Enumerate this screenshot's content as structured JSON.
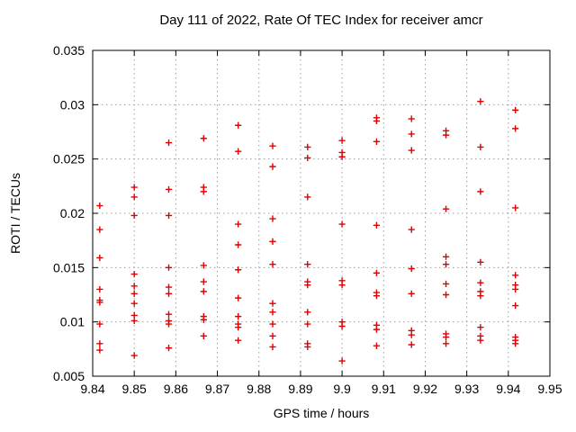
{
  "title": "Day 111 of 2022, Rate Of TEC Index for receiver amcr",
  "colors": {
    "marker": "#e00000",
    "grid": "#9e9e9e",
    "frame": "#000000",
    "background": "#ffffff"
  },
  "chart_data": {
    "type": "scatter",
    "title": "Day 111 of 2022, Rate Of TEC Index for receiver amcr",
    "xlabel": "GPS time / hours",
    "ylabel": "ROTI / TECUs",
    "xlim": [
      9.84,
      9.95
    ],
    "ylim": [
      0.005,
      0.035
    ],
    "xticks": [
      9.84,
      9.85,
      9.86,
      9.87,
      9.88,
      9.89,
      9.9,
      9.91,
      9.92,
      9.93,
      9.94,
      9.95
    ],
    "xtick_labels": [
      "9.84",
      "9.85",
      "9.86",
      "9.87",
      "9.88",
      "9.89",
      "9.9",
      "9.91",
      "9.92",
      "9.93",
      "9.94",
      "9.95"
    ],
    "yticks": [
      0.005,
      0.01,
      0.015,
      0.02,
      0.025,
      0.03,
      0.035
    ],
    "ytick_labels": [
      "0.005",
      "0.01",
      "0.015",
      "0.02",
      "0.025",
      "0.03",
      "0.035"
    ],
    "grid": true,
    "grid_style": "dotted",
    "legend": "none",
    "marker": "plus",
    "marker_color": "#e00000",
    "series": [
      {
        "name": "ROTI",
        "points": [
          [
            9.8417,
            0.0207
          ],
          [
            9.8417,
            0.0185
          ],
          [
            9.8417,
            0.0159
          ],
          [
            9.8417,
            0.013
          ],
          [
            9.8417,
            0.012
          ],
          [
            9.8417,
            0.0118
          ],
          [
            9.8417,
            0.0098
          ],
          [
            9.8417,
            0.008
          ],
          [
            9.8417,
            0.0074
          ],
          [
            9.85,
            0.0224
          ],
          [
            9.85,
            0.0215
          ],
          [
            9.85,
            0.0198
          ],
          [
            9.85,
            0.0144
          ],
          [
            9.85,
            0.0133
          ],
          [
            9.85,
            0.0126
          ],
          [
            9.85,
            0.0117
          ],
          [
            9.85,
            0.0106
          ],
          [
            9.85,
            0.0101
          ],
          [
            9.85,
            0.0069
          ],
          [
            9.8583,
            0.0265
          ],
          [
            9.8583,
            0.0222
          ],
          [
            9.8583,
            0.0198
          ],
          [
            9.8583,
            0.015
          ],
          [
            9.8583,
            0.0132
          ],
          [
            9.8583,
            0.0126
          ],
          [
            9.8583,
            0.0107
          ],
          [
            9.8583,
            0.0101
          ],
          [
            9.8583,
            0.0098
          ],
          [
            9.8583,
            0.0076
          ],
          [
            9.8667,
            0.0269
          ],
          [
            9.8667,
            0.0224
          ],
          [
            9.8667,
            0.022
          ],
          [
            9.8667,
            0.0152
          ],
          [
            9.8667,
            0.0137
          ],
          [
            9.8667,
            0.0128
          ],
          [
            9.8667,
            0.0105
          ],
          [
            9.8667,
            0.0102
          ],
          [
            9.8667,
            0.0087
          ],
          [
            9.875,
            0.0281
          ],
          [
            9.875,
            0.0257
          ],
          [
            9.875,
            0.019
          ],
          [
            9.875,
            0.0171
          ],
          [
            9.875,
            0.0148
          ],
          [
            9.875,
            0.0122
          ],
          [
            9.875,
            0.0105
          ],
          [
            9.875,
            0.0098
          ],
          [
            9.875,
            0.0095
          ],
          [
            9.875,
            0.0083
          ],
          [
            9.8833,
            0.0262
          ],
          [
            9.8833,
            0.0243
          ],
          [
            9.8833,
            0.0195
          ],
          [
            9.8833,
            0.0174
          ],
          [
            9.8833,
            0.0153
          ],
          [
            9.8833,
            0.0117
          ],
          [
            9.8833,
            0.0109
          ],
          [
            9.8833,
            0.0098
          ],
          [
            9.8833,
            0.0087
          ],
          [
            9.8833,
            0.0077
          ],
          [
            9.8917,
            0.0261
          ],
          [
            9.8917,
            0.0251
          ],
          [
            9.8917,
            0.0215
          ],
          [
            9.8917,
            0.0153
          ],
          [
            9.8917,
            0.0137
          ],
          [
            9.8917,
            0.0134
          ],
          [
            9.8917,
            0.0109
          ],
          [
            9.8917,
            0.0098
          ],
          [
            9.8917,
            0.008
          ],
          [
            9.8917,
            0.0077
          ],
          [
            9.9,
            0.0267
          ],
          [
            9.9,
            0.0256
          ],
          [
            9.9,
            0.0252
          ],
          [
            9.9,
            0.019
          ],
          [
            9.9,
            0.0138
          ],
          [
            9.9,
            0.0134
          ],
          [
            9.9,
            0.01
          ],
          [
            9.9,
            0.0096
          ],
          [
            9.9,
            0.0064
          ],
          [
            9.9083,
            0.0288
          ],
          [
            9.9083,
            0.0285
          ],
          [
            9.9083,
            0.0266
          ],
          [
            9.9083,
            0.0189
          ],
          [
            9.9083,
            0.0145
          ],
          [
            9.9083,
            0.0127
          ],
          [
            9.9083,
            0.0124
          ],
          [
            9.9083,
            0.0097
          ],
          [
            9.9083,
            0.0093
          ],
          [
            9.9083,
            0.0078
          ],
          [
            9.9167,
            0.0287
          ],
          [
            9.9167,
            0.0273
          ],
          [
            9.9167,
            0.0258
          ],
          [
            9.9167,
            0.0185
          ],
          [
            9.9167,
            0.0149
          ],
          [
            9.9167,
            0.0126
          ],
          [
            9.9167,
            0.0092
          ],
          [
            9.9167,
            0.0088
          ],
          [
            9.9167,
            0.0079
          ],
          [
            9.925,
            0.0276
          ],
          [
            9.925,
            0.0272
          ],
          [
            9.925,
            0.0204
          ],
          [
            9.925,
            0.016
          ],
          [
            9.925,
            0.0153
          ],
          [
            9.925,
            0.0135
          ],
          [
            9.925,
            0.0125
          ],
          [
            9.925,
            0.0089
          ],
          [
            9.925,
            0.0086
          ],
          [
            9.925,
            0.008
          ],
          [
            9.9333,
            0.0303
          ],
          [
            9.9333,
            0.0261
          ],
          [
            9.9333,
            0.022
          ],
          [
            9.9333,
            0.0155
          ],
          [
            9.9333,
            0.0136
          ],
          [
            9.9333,
            0.0128
          ],
          [
            9.9333,
            0.0124
          ],
          [
            9.9333,
            0.0095
          ],
          [
            9.9333,
            0.0087
          ],
          [
            9.9333,
            0.0083
          ],
          [
            9.9417,
            0.0295
          ],
          [
            9.9417,
            0.0278
          ],
          [
            9.9417,
            0.0205
          ],
          [
            9.9417,
            0.0143
          ],
          [
            9.9417,
            0.0134
          ],
          [
            9.9417,
            0.013
          ],
          [
            9.9417,
            0.0115
          ],
          [
            9.9417,
            0.0086
          ],
          [
            9.9417,
            0.0083
          ],
          [
            9.9417,
            0.008
          ]
        ]
      }
    ]
  }
}
